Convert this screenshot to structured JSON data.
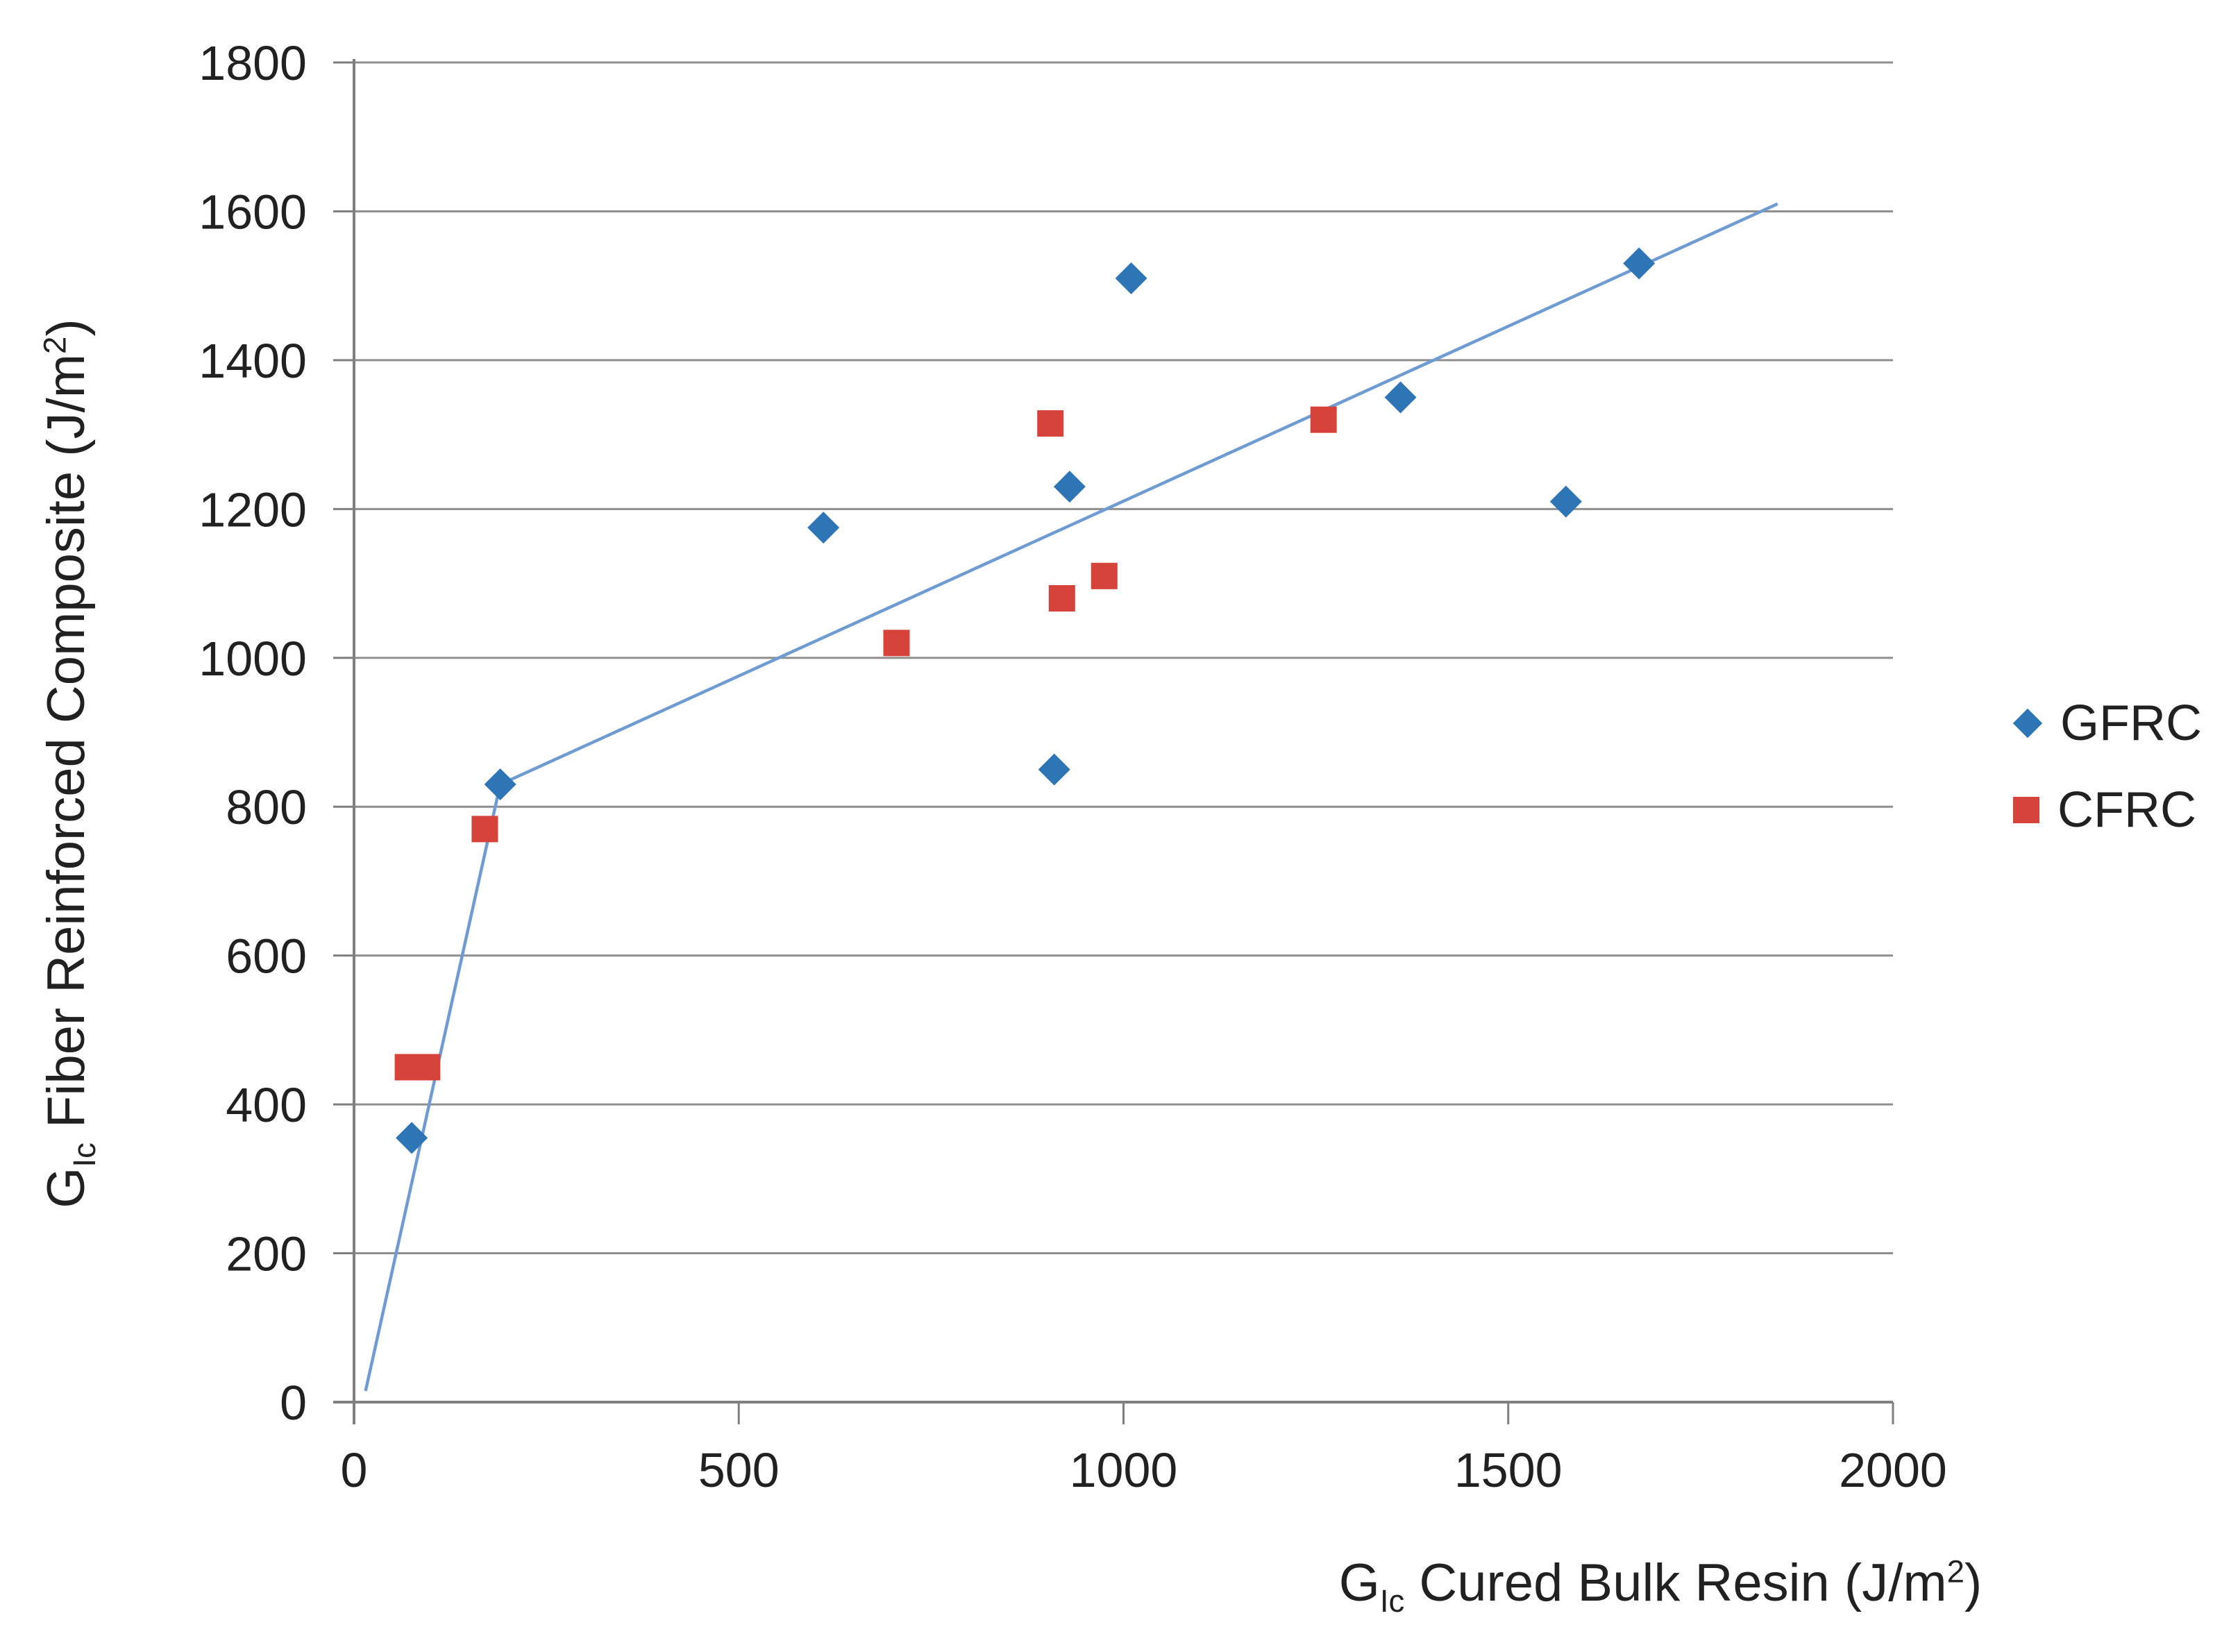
{
  "chart_data": {
    "type": "scatter",
    "title": "",
    "xlabel_parts": {
      "base": "G",
      "sub": "Ic",
      "rest": " Cured Bulk Resin (J/m",
      "sup": "2",
      "close": ")"
    },
    "ylabel_parts": {
      "base": "G",
      "sub": "Ic",
      "rest": " Fiber Reinforced Composite (J/m",
      "sup": "2",
      "close": ")"
    },
    "xlabel_text": "GIc Cured Bulk Resin (J/m2)",
    "ylabel_text": "GIc Fiber Reinforced Composite (J/m2)",
    "xlim": [
      0,
      2000
    ],
    "ylim": [
      0,
      1800
    ],
    "x_ticks": [
      0,
      500,
      1000,
      1500,
      2000
    ],
    "y_ticks": [
      0,
      200,
      400,
      600,
      800,
      1000,
      1200,
      1400,
      1600,
      1800
    ],
    "grid": "horizontal",
    "legend_position": "right",
    "series": [
      {
        "name": "GFRC",
        "marker": "diamond",
        "color": "#2E75B6",
        "points": [
          [
            75,
            355
          ],
          [
            190,
            830
          ],
          [
            610,
            1175
          ],
          [
            910,
            850
          ],
          [
            930,
            1230
          ],
          [
            1010,
            1510
          ],
          [
            1360,
            1350
          ],
          [
            1575,
            1210
          ],
          [
            1670,
            1530
          ]
        ]
      },
      {
        "name": "CFRC",
        "marker": "square",
        "color": "#D6433B",
        "points": [
          [
            70,
            450
          ],
          [
            95,
            450
          ],
          [
            170,
            770
          ],
          [
            705,
            1020
          ],
          [
            905,
            1315
          ],
          [
            920,
            1080
          ],
          [
            975,
            1110
          ],
          [
            1260,
            1320
          ]
        ]
      }
    ],
    "trendline": {
      "color": "#6E9CD2",
      "points": [
        [
          15,
          15
        ],
        [
          190,
          830
        ],
        [
          1850,
          1610
        ]
      ]
    },
    "axis_color": "#7F7F7F",
    "grid_color": "#8F8F8F",
    "tick_label_color": "#212121"
  }
}
